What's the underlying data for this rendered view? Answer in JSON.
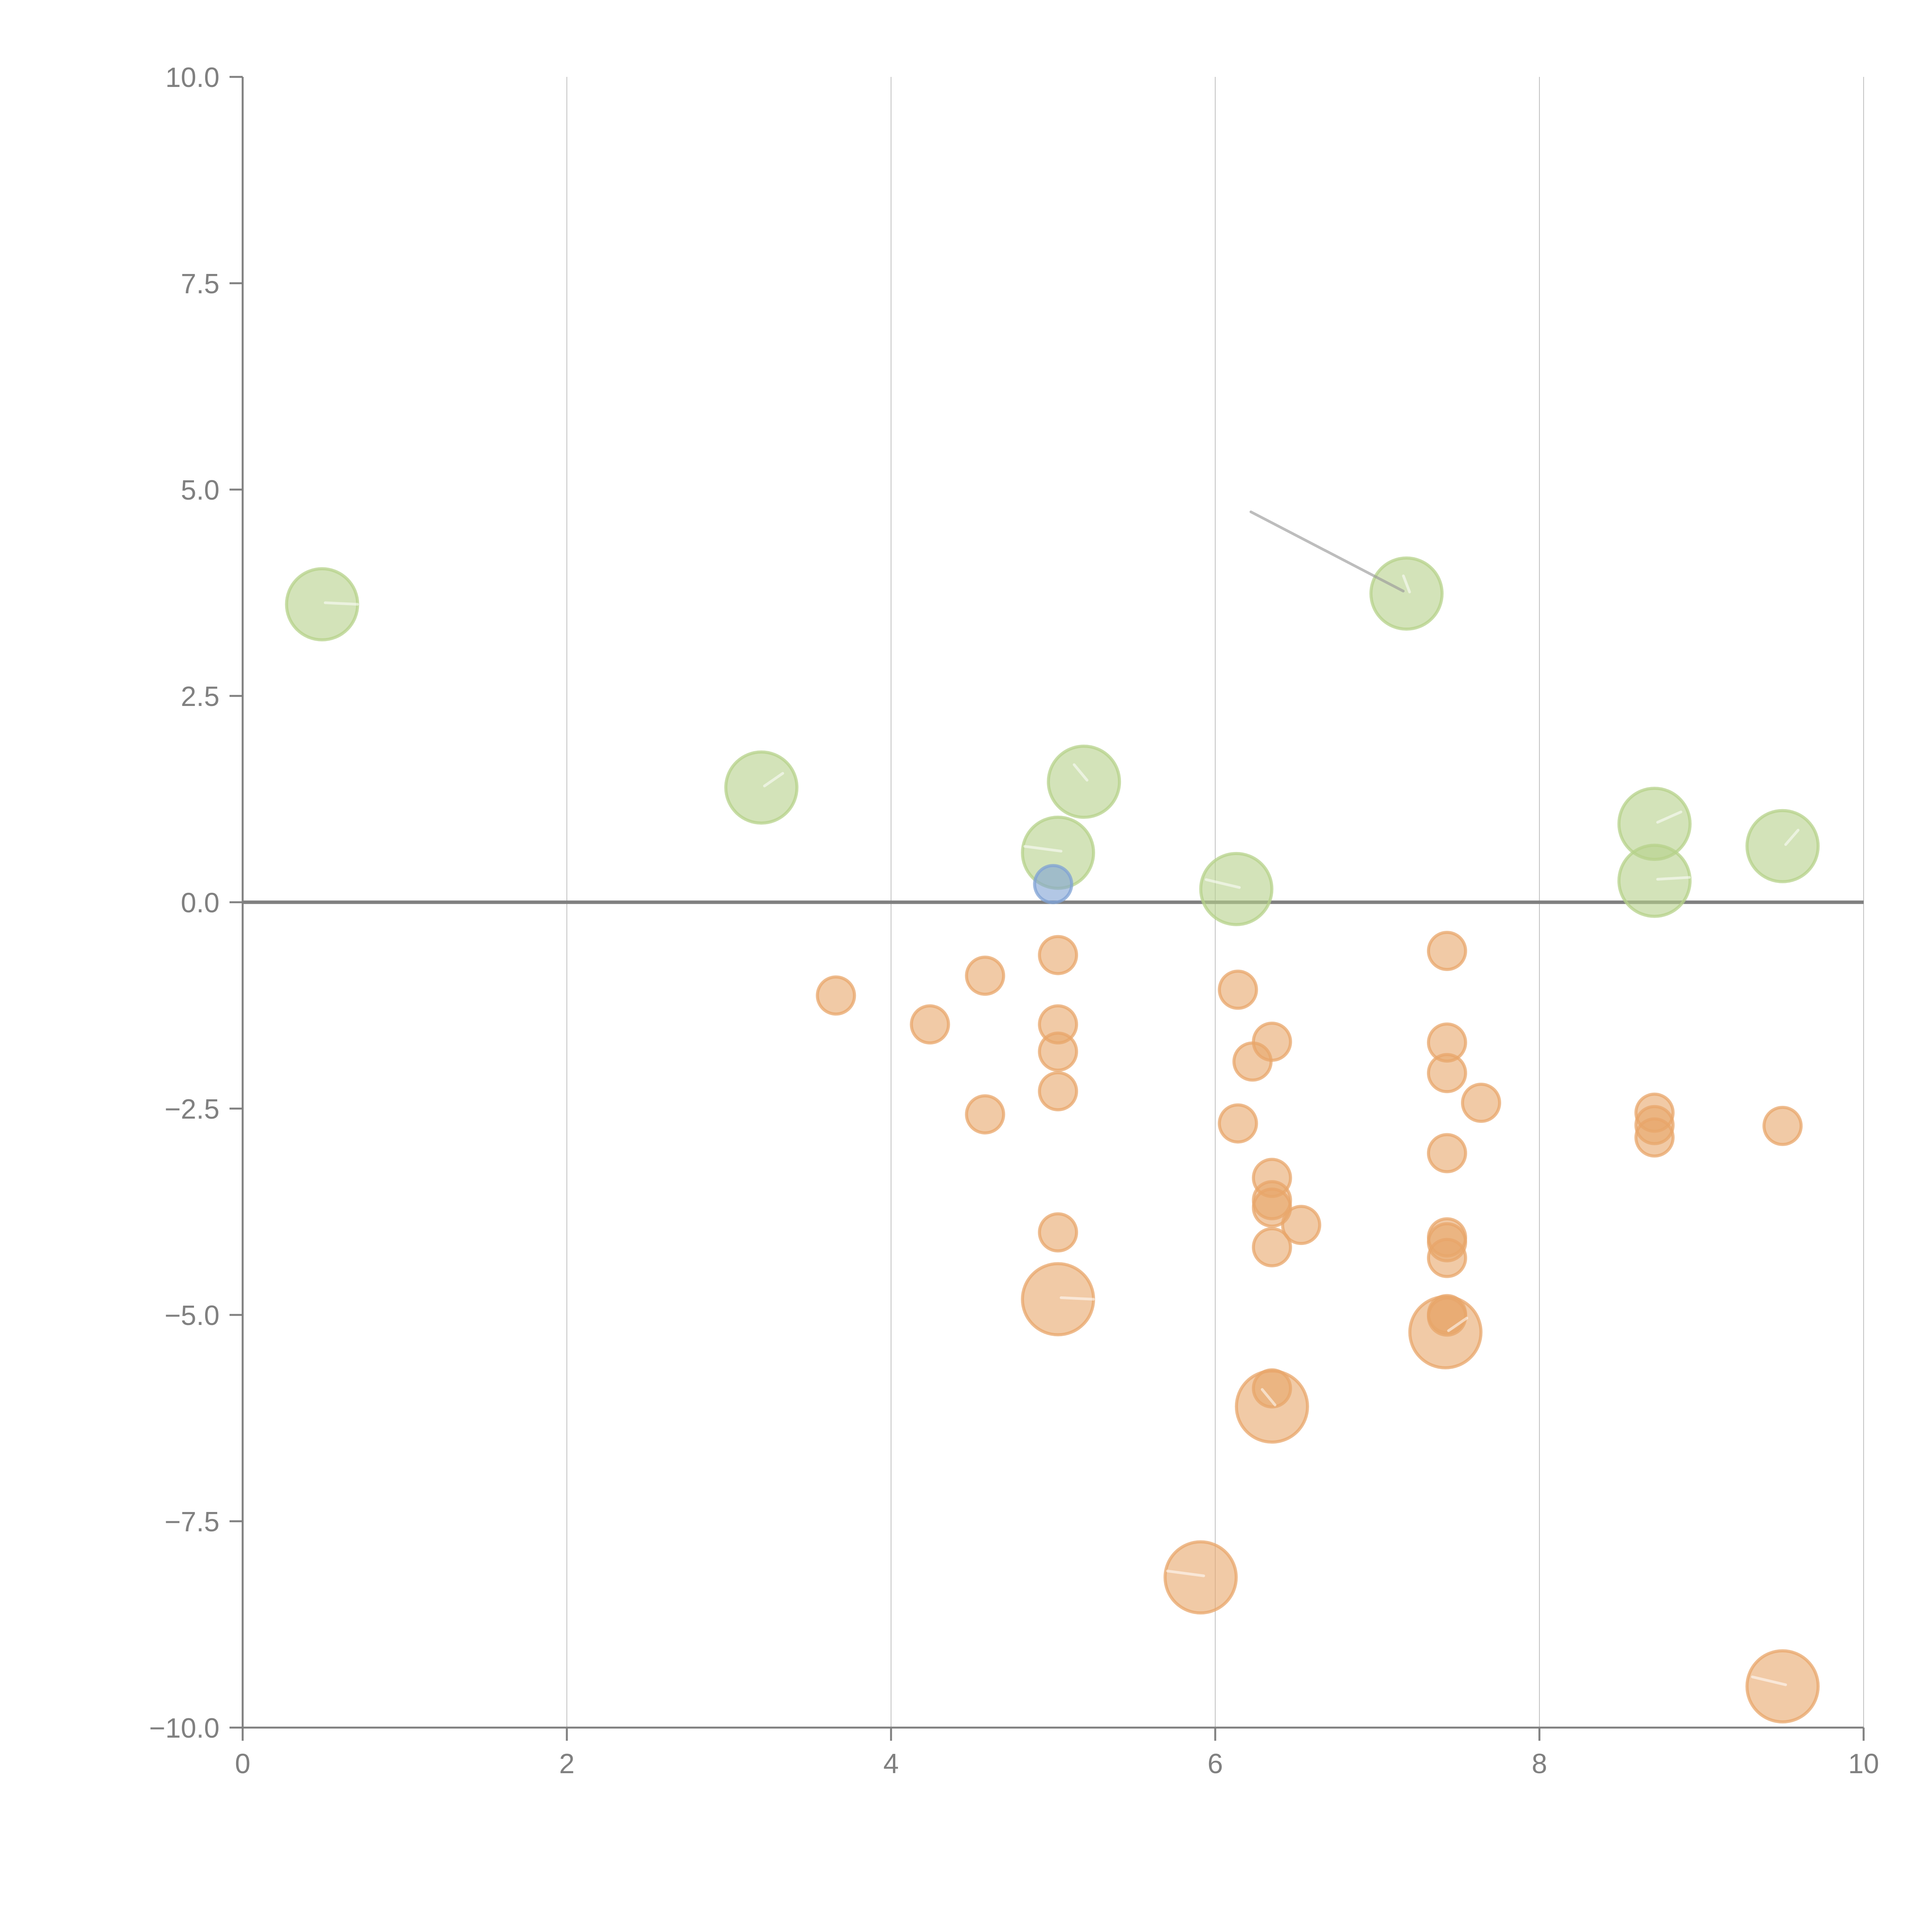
{
  "chart_data": {
    "type": "scatter",
    "subtype": "bubble",
    "title": "",
    "xlabel": "",
    "ylabel": "",
    "xlim": [
      0,
      10
    ],
    "ylim": [
      -10,
      10
    ],
    "x_ticks": [
      0,
      2,
      4,
      6,
      8,
      10
    ],
    "x_tick_labels": [
      "0",
      "2",
      "4",
      "6",
      "8",
      "10"
    ],
    "y_ticks": [
      10,
      7.5,
      5,
      2.5,
      0,
      -2.5,
      -5,
      -7.5,
      -10
    ],
    "y_tick_labels": [
      "10.0",
      "7.5",
      "5.0",
      "2.5",
      "0.0",
      "−2.5",
      "−5.0",
      "−7.5",
      "−10.0"
    ],
    "grid": "vertical",
    "reference_line_y": 0,
    "legend": "none",
    "colors": {
      "green": "#b5d18a",
      "orange": "#e8a66a",
      "blue": "#7fa2d4",
      "axis": "#808080"
    },
    "series": [
      {
        "name": "green",
        "color": "#b5d18a",
        "size": "large",
        "points": [
          {
            "x": 0.49,
            "y": 3.61
          },
          {
            "x": 3.2,
            "y": 1.39
          },
          {
            "x": 5.19,
            "y": 1.46
          },
          {
            "x": 5.03,
            "y": 0.6
          },
          {
            "x": 6.13,
            "y": 0.16
          },
          {
            "x": 7.18,
            "y": 3.74
          },
          {
            "x": 8.71,
            "y": 0.95
          },
          {
            "x": 8.71,
            "y": 0.26
          },
          {
            "x": 9.5,
            "y": 0.68
          }
        ]
      },
      {
        "name": "blue",
        "color": "#7fa2d4",
        "size": "small",
        "points": [
          {
            "x": 5.0,
            "y": 0.22
          }
        ]
      },
      {
        "name": "orange",
        "color": "#e8a66a",
        "size": "small",
        "points": [
          {
            "x": 3.66,
            "y": -1.13
          },
          {
            "x": 4.24,
            "y": -1.48
          },
          {
            "x": 4.58,
            "y": -0.89
          },
          {
            "x": 4.58,
            "y": -2.57
          },
          {
            "x": 5.03,
            "y": -0.64
          },
          {
            "x": 5.03,
            "y": -1.48
          },
          {
            "x": 5.03,
            "y": -1.81
          },
          {
            "x": 5.03,
            "y": -2.29
          },
          {
            "x": 5.03,
            "y": -4.0
          },
          {
            "x": 6.14,
            "y": -1.06
          },
          {
            "x": 6.23,
            "y": -1.93
          },
          {
            "x": 6.35,
            "y": -1.69
          },
          {
            "x": 6.14,
            "y": -2.68
          },
          {
            "x": 6.35,
            "y": -3.34
          },
          {
            "x": 6.35,
            "y": -3.61
          },
          {
            "x": 6.35,
            "y": -3.7
          },
          {
            "x": 6.53,
            "y": -3.91
          },
          {
            "x": 6.35,
            "y": -4.18
          },
          {
            "x": 6.35,
            "y": -5.89
          },
          {
            "x": 7.43,
            "y": -0.59
          },
          {
            "x": 7.43,
            "y": -1.7
          },
          {
            "x": 7.43,
            "y": -2.07
          },
          {
            "x": 7.64,
            "y": -2.43
          },
          {
            "x": 7.43,
            "y": -3.04
          },
          {
            "x": 7.43,
            "y": -4.06
          },
          {
            "x": 7.43,
            "y": -4.12
          },
          {
            "x": 7.43,
            "y": -4.31
          },
          {
            "x": 7.43,
            "y": -4.99
          },
          {
            "x": 7.43,
            "y": -5.02
          },
          {
            "x": 8.71,
            "y": -2.55
          },
          {
            "x": 8.71,
            "y": -2.7
          },
          {
            "x": 8.71,
            "y": -2.85
          },
          {
            "x": 9.5,
            "y": -2.71
          }
        ]
      },
      {
        "name": "orange-large",
        "color": "#e8a66a",
        "size": "large",
        "points": [
          {
            "x": 5.03,
            "y": -4.81
          },
          {
            "x": 7.42,
            "y": -5.21
          },
          {
            "x": 6.35,
            "y": -6.11
          },
          {
            "x": 5.91,
            "y": -8.18
          },
          {
            "x": 9.5,
            "y": -9.5
          }
        ]
      }
    ],
    "annotations": [
      {
        "type": "leader-line",
        "from": {
          "x": 6.22,
          "y": 4.73
        },
        "to": {
          "x": 7.16,
          "y": 3.77
        },
        "text": ""
      }
    ]
  }
}
